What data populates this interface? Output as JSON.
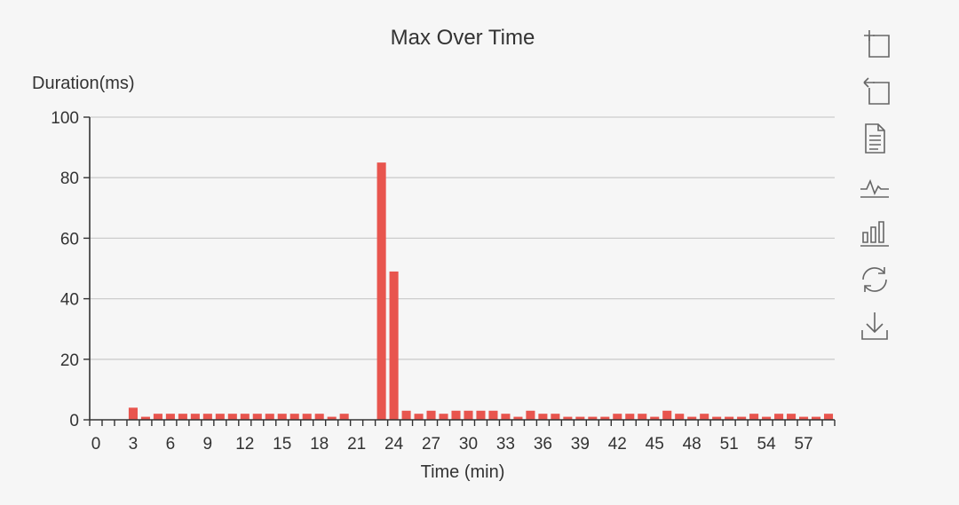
{
  "chart_data": {
    "type": "bar",
    "title": "Max Over Time",
    "xlabel": "Time (min)",
    "ylabel": "Duration(ms)",
    "ylim": [
      0,
      100
    ],
    "yticks": [
      0,
      20,
      40,
      60,
      80,
      100
    ],
    "xticks": [
      0,
      3,
      6,
      9,
      12,
      15,
      18,
      21,
      24,
      27,
      30,
      33,
      36,
      39,
      42,
      45,
      48,
      51,
      54,
      57
    ],
    "grid": "horizontal",
    "bar_color": "#e8554e",
    "x": [
      0,
      1,
      2,
      3,
      4,
      5,
      6,
      7,
      8,
      9,
      10,
      11,
      12,
      13,
      14,
      15,
      16,
      17,
      18,
      19,
      20,
      21,
      22,
      23,
      24,
      25,
      26,
      27,
      28,
      29,
      30,
      31,
      32,
      33,
      34,
      35,
      36,
      37,
      38,
      39,
      40,
      41,
      42,
      43,
      44,
      45,
      46,
      47,
      48,
      49,
      50,
      51,
      52,
      53,
      54,
      55,
      56,
      57,
      58,
      59
    ],
    "values": [
      0,
      0,
      0,
      4,
      1,
      2,
      2,
      2,
      2,
      2,
      2,
      2,
      2,
      2,
      2,
      2,
      2,
      2,
      2,
      1,
      2,
      0,
      0,
      85,
      49,
      3,
      2,
      3,
      2,
      3,
      3,
      3,
      3,
      2,
      1,
      3,
      2,
      2,
      1,
      1,
      1,
      1,
      2,
      2,
      2,
      1,
      3,
      2,
      1,
      2,
      1,
      1,
      1,
      2,
      1,
      2,
      2,
      1,
      1,
      2
    ]
  },
  "toolbox": {
    "items": [
      {
        "name": "zoom-icon"
      },
      {
        "name": "zoom-reset-icon"
      },
      {
        "name": "data-view-icon"
      },
      {
        "name": "line-chart-icon"
      },
      {
        "name": "bar-chart-icon"
      },
      {
        "name": "restore-icon"
      },
      {
        "name": "save-image-icon"
      }
    ]
  }
}
